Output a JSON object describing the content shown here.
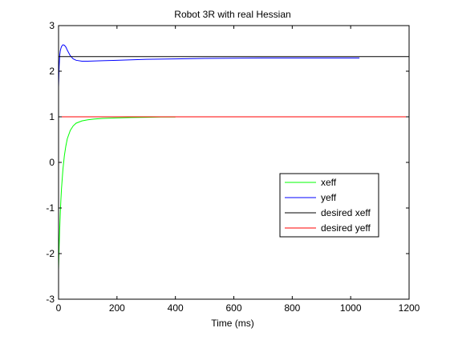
{
  "chart_data": {
    "type": "line",
    "title": "Robot 3R with real Hessian",
    "xlabel": "Time (ms)",
    "ylabel": "",
    "xlim": [
      0,
      1200
    ],
    "ylim": [
      -3,
      3
    ],
    "xticks": [
      0,
      200,
      400,
      600,
      800,
      1000,
      1200
    ],
    "yticks": [
      -3,
      -2,
      -1,
      0,
      1,
      2,
      3
    ],
    "xtick_labels": [
      "0",
      "200",
      "400",
      "600",
      "800",
      "1000",
      "1200"
    ],
    "ytick_labels": [
      "-3",
      "-2",
      "-1",
      "0",
      "1",
      "2",
      "3"
    ],
    "grid": false,
    "legend_position": "right",
    "series": [
      {
        "name": "xeff",
        "color": "#00ff00",
        "x": [
          0,
          2,
          4,
          6,
          8,
          10,
          15,
          20,
          25,
          30,
          40,
          50,
          60,
          80,
          100,
          120,
          150,
          200,
          250,
          300,
          350,
          400
        ],
        "y": [
          -2.35,
          -1.85,
          -1.45,
          -1.1,
          -0.82,
          -0.58,
          -0.15,
          0.15,
          0.36,
          0.52,
          0.7,
          0.8,
          0.86,
          0.91,
          0.935,
          0.95,
          0.965,
          0.975,
          0.985,
          0.99,
          0.995,
          0.995
        ]
      },
      {
        "name": "yeff",
        "color": "#0000ff",
        "x": [
          0,
          2,
          4,
          6,
          8,
          10,
          15,
          20,
          25,
          30,
          40,
          50,
          60,
          80,
          100,
          150,
          200,
          300,
          400,
          500,
          700,
          900,
          1030
        ],
        "y": [
          1.65,
          2.1,
          2.35,
          2.45,
          2.5,
          2.54,
          2.58,
          2.57,
          2.53,
          2.46,
          2.34,
          2.27,
          2.24,
          2.22,
          2.22,
          2.23,
          2.24,
          2.26,
          2.27,
          2.28,
          2.29,
          2.29,
          2.29
        ]
      },
      {
        "name": "desired xeff",
        "color": "#000000",
        "x": [
          0,
          1200
        ],
        "y": [
          2.32,
          2.32
        ]
      },
      {
        "name": "desired yeff",
        "color": "#ff0000",
        "x": [
          0,
          1200
        ],
        "y": [
          1.0,
          1.0
        ]
      }
    ]
  }
}
